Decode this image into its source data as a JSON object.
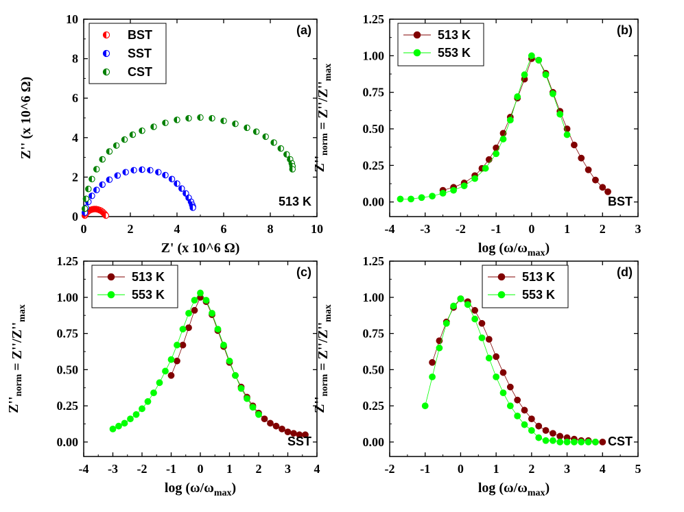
{
  "chart_data": [
    {
      "type": "scatter",
      "panel": "(a)",
      "annotation": "513 K",
      "xlabel": "Z' (x 10^6 Ω)",
      "ylabel": "Z'' (x 10^6 Ω)",
      "xlim": [
        0,
        10
      ],
      "ylim": [
        0,
        10
      ],
      "xticks": [
        0,
        2,
        4,
        6,
        8,
        10
      ],
      "yticks": [
        0,
        2,
        4,
        6,
        8,
        10
      ],
      "legend_position": "top-left",
      "series": [
        {
          "name": "BST",
          "color": "#ff0000",
          "x": [
            0.05,
            0.08,
            0.12,
            0.17,
            0.23,
            0.3,
            0.37,
            0.45,
            0.53,
            0.61,
            0.68,
            0.75,
            0.81,
            0.86,
            0.9,
            0.93,
            0.95
          ],
          "y": [
            0.05,
            0.12,
            0.19,
            0.25,
            0.3,
            0.34,
            0.37,
            0.38,
            0.38,
            0.36,
            0.33,
            0.29,
            0.24,
            0.18,
            0.13,
            0.08,
            0.05
          ]
        },
        {
          "name": "SST",
          "color": "#0000ff",
          "x": [
            0.05,
            0.1,
            0.2,
            0.35,
            0.55,
            0.8,
            1.1,
            1.45,
            1.8,
            2.15,
            2.5,
            2.85,
            3.2,
            3.5,
            3.78,
            4.0,
            4.2,
            4.38,
            4.5,
            4.6,
            4.65,
            4.68,
            4.68
          ],
          "y": [
            0.2,
            0.45,
            0.75,
            1.05,
            1.35,
            1.62,
            1.87,
            2.08,
            2.25,
            2.35,
            2.38,
            2.35,
            2.25,
            2.1,
            1.9,
            1.67,
            1.42,
            1.17,
            0.95,
            0.75,
            0.6,
            0.5,
            0.45
          ]
        },
        {
          "name": "CST",
          "color": "#008000",
          "x": [
            0.05,
            0.1,
            0.2,
            0.35,
            0.55,
            0.8,
            1.1,
            1.4,
            1.75,
            2.1,
            2.5,
            3.0,
            3.5,
            4.0,
            4.5,
            5.0,
            5.5,
            6.0,
            6.5,
            7.0,
            7.4,
            7.8,
            8.15,
            8.45,
            8.7,
            8.85,
            8.92,
            8.95,
            8.95
          ],
          "y": [
            0.4,
            0.9,
            1.4,
            1.9,
            2.4,
            2.9,
            3.3,
            3.6,
            3.9,
            4.15,
            4.35,
            4.55,
            4.75,
            4.9,
            4.98,
            5.02,
            4.98,
            4.85,
            4.7,
            4.5,
            4.3,
            4.05,
            3.75,
            3.45,
            3.15,
            2.9,
            2.7,
            2.55,
            2.4
          ]
        }
      ]
    },
    {
      "type": "line",
      "panel": "(b)",
      "annotation": "BST",
      "xlabel": "log (ω/ωmax)",
      "ylabel": "Z''norm = Z''/Z''max",
      "xlim": [
        -4,
        3
      ],
      "ylim": [
        -0.1,
        1.25
      ],
      "xticks": [
        -4,
        -3,
        -2,
        -1,
        0,
        1,
        2,
        3
      ],
      "yticks": [
        0.0,
        0.25,
        0.5,
        0.75,
        1.0,
        1.25
      ],
      "legend_position": "top-left",
      "series": [
        {
          "name": "513 K",
          "color": "#800000",
          "x": [
            -2.5,
            -2.2,
            -1.9,
            -1.6,
            -1.4,
            -1.2,
            -1.0,
            -0.8,
            -0.6,
            -0.4,
            -0.2,
            0.0,
            0.2,
            0.4,
            0.6,
            0.8,
            1.0,
            1.2,
            1.4,
            1.6,
            1.8,
            2.0,
            2.15
          ],
          "y": [
            0.08,
            0.1,
            0.13,
            0.18,
            0.23,
            0.29,
            0.37,
            0.47,
            0.58,
            0.71,
            0.84,
            0.98,
            0.97,
            0.88,
            0.75,
            0.62,
            0.5,
            0.39,
            0.3,
            0.22,
            0.15,
            0.1,
            0.07
          ]
        },
        {
          "name": "553 K",
          "color": "#00ff00",
          "x": [
            -3.7,
            -3.4,
            -3.1,
            -2.8,
            -2.5,
            -2.2,
            -1.9,
            -1.6,
            -1.3,
            -1.0,
            -0.8,
            -0.6,
            -0.4,
            -0.2,
            0.0,
            0.2,
            0.4,
            0.6,
            0.8,
            1.0
          ],
          "y": [
            0.02,
            0.02,
            0.03,
            0.04,
            0.06,
            0.08,
            0.11,
            0.16,
            0.23,
            0.33,
            0.43,
            0.56,
            0.72,
            0.87,
            1.0,
            0.97,
            0.87,
            0.74,
            0.6,
            0.46
          ]
        }
      ]
    },
    {
      "type": "line",
      "panel": "(c)",
      "annotation": "SST",
      "xlabel": "log (ω/ωmax)",
      "ylabel": "Z''norm = Z''/Z''max",
      "xlim": [
        -4,
        4
      ],
      "ylim": [
        -0.1,
        1.25
      ],
      "xticks": [
        -4,
        -3,
        -2,
        -1,
        0,
        1,
        2,
        3,
        4
      ],
      "yticks": [
        0.0,
        0.25,
        0.5,
        0.75,
        1.0,
        1.25
      ],
      "legend_position": "top-left",
      "series": [
        {
          "name": "513 K",
          "color": "#800000",
          "x": [
            -1.0,
            -0.8,
            -0.6,
            -0.4,
            -0.2,
            0.0,
            0.2,
            0.4,
            0.6,
            0.8,
            1.0,
            1.2,
            1.4,
            1.6,
            1.8,
            2.0,
            2.2,
            2.4,
            2.6,
            2.8,
            3.0,
            3.2,
            3.4,
            3.6
          ],
          "y": [
            0.46,
            0.56,
            0.67,
            0.79,
            0.91,
            1.0,
            0.97,
            0.88,
            0.77,
            0.66,
            0.55,
            0.46,
            0.38,
            0.31,
            0.25,
            0.2,
            0.16,
            0.13,
            0.11,
            0.09,
            0.07,
            0.06,
            0.05,
            0.05
          ]
        },
        {
          "name": "553 K",
          "color": "#00ff00",
          "x": [
            -3.0,
            -2.8,
            -2.6,
            -2.4,
            -2.2,
            -2.0,
            -1.8,
            -1.6,
            -1.4,
            -1.2,
            -1.0,
            -0.8,
            -0.6,
            -0.4,
            -0.2,
            0.0,
            0.2,
            0.4,
            0.6,
            0.8,
            1.0,
            1.2,
            1.4,
            1.6,
            1.8,
            2.0
          ],
          "y": [
            0.09,
            0.11,
            0.13,
            0.16,
            0.19,
            0.23,
            0.28,
            0.34,
            0.41,
            0.49,
            0.57,
            0.67,
            0.78,
            0.89,
            0.98,
            1.03,
            0.98,
            0.89,
            0.78,
            0.67,
            0.56,
            0.46,
            0.37,
            0.3,
            0.24,
            0.19
          ]
        }
      ]
    },
    {
      "type": "line",
      "panel": "(d)",
      "annotation": "CST",
      "xlabel": "log (ω/ωmax)",
      "ylabel": "Z''norm = Z''/Z''max",
      "xlim": [
        -2,
        5
      ],
      "ylim": [
        -0.1,
        1.25
      ],
      "xticks": [
        -2,
        -1,
        0,
        1,
        2,
        3,
        4,
        5
      ],
      "yticks": [
        0.0,
        0.25,
        0.5,
        0.75,
        1.0,
        1.25
      ],
      "legend_position": "top-right",
      "series": [
        {
          "name": "513 K",
          "color": "#800000",
          "x": [
            -0.8,
            -0.6,
            -0.4,
            -0.2,
            0.0,
            0.2,
            0.4,
            0.6,
            0.8,
            1.0,
            1.2,
            1.4,
            1.6,
            1.8,
            2.0,
            2.2,
            2.4,
            2.6,
            2.8,
            3.0,
            3.2,
            3.4,
            3.6,
            3.8,
            4.0
          ],
          "y": [
            0.55,
            0.7,
            0.83,
            0.93,
            0.99,
            0.97,
            0.91,
            0.82,
            0.71,
            0.59,
            0.48,
            0.38,
            0.29,
            0.22,
            0.16,
            0.11,
            0.08,
            0.06,
            0.04,
            0.03,
            0.02,
            0.01,
            0.01,
            0.0,
            0.0
          ]
        },
        {
          "name": "553 K",
          "color": "#00ff00",
          "x": [
            -1.0,
            -0.8,
            -0.6,
            -0.4,
            -0.2,
            0.0,
            0.2,
            0.4,
            0.6,
            0.8,
            1.0,
            1.2,
            1.4,
            1.6,
            1.8,
            2.0,
            2.2,
            2.4,
            2.6,
            2.8,
            3.0,
            3.2,
            3.4,
            3.6,
            3.8
          ],
          "y": [
            0.25,
            0.45,
            0.65,
            0.82,
            0.94,
            0.99,
            0.95,
            0.85,
            0.72,
            0.58,
            0.45,
            0.34,
            0.25,
            0.18,
            0.12,
            0.08,
            0.03,
            0.01,
            0.01,
            0.0,
            0.0,
            0.0,
            0.0,
            0.0,
            0.0
          ]
        }
      ]
    }
  ]
}
